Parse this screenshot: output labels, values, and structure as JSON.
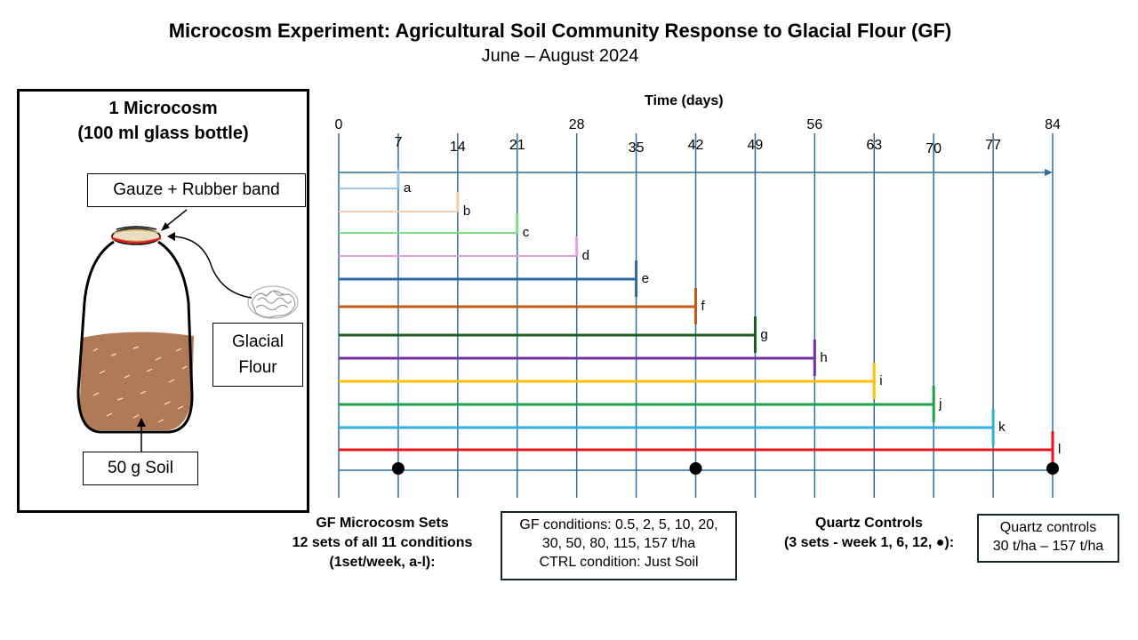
{
  "header": {
    "title": "Microcosm Experiment: Agricultural Soil Community Response to Glacial Flour (GF)",
    "subtitle": "June – August 2024"
  },
  "microcosm": {
    "title_line1": "1 Microcosm",
    "title_line2": "(100 ml glass bottle)",
    "gauze_label": "Gauze + Rubber band",
    "glacial_label_line1": "Glacial",
    "glacial_label_line2": "Flour",
    "soil_label": "50 g Soil",
    "soil_color": "#b07a57"
  },
  "timeline": {
    "axis_title": "Time (days)",
    "ticks": [
      0,
      7,
      14,
      21,
      28,
      35,
      42,
      49,
      56,
      63,
      70,
      77,
      84
    ],
    "sets": [
      {
        "label": "a",
        "end": 7,
        "color": "#9dc3e6"
      },
      {
        "label": "b",
        "end": 14,
        "color": "#f8cbad"
      },
      {
        "label": "c",
        "end": 21,
        "color": "#7fdc84"
      },
      {
        "label": "d",
        "end": 28,
        "color": "#e49ee4"
      },
      {
        "label": "e",
        "end": 35,
        "color": "#2e69a4"
      },
      {
        "label": "f",
        "end": 42,
        "color": "#c55a11"
      },
      {
        "label": "g",
        "end": 49,
        "color": "#1e5b1e"
      },
      {
        "label": "h",
        "end": 56,
        "color": "#7030a0"
      },
      {
        "label": "i",
        "end": 63,
        "color": "#ffc000"
      },
      {
        "label": "j",
        "end": 70,
        "color": "#1aa34a"
      },
      {
        "label": "k",
        "end": 77,
        "color": "#2eaee3"
      },
      {
        "label": "l",
        "end": 84,
        "color": "#e8141b"
      }
    ],
    "quartz_days": [
      7,
      42,
      84
    ]
  },
  "captions": {
    "gf_sets_line1": "GF Microcosm Sets",
    "gf_sets_line2": "12 sets of all 11 conditions",
    "gf_sets_line3": "(1set/week, a-l):",
    "gf_conditions_line1": "GF conditions: 0.5, 2, 5, 10, 20,",
    "gf_conditions_line2": "30, 50, 80, 115, 157 t/ha",
    "gf_conditions_line3": "CTRL condition: Just Soil",
    "quartz_line1": "Quartz Controls",
    "quartz_line2": "(3 sets - week 1, 6, 12, ●):",
    "quartz_box_line1": "Quartz controls",
    "quartz_box_line2": "30 t/ha – 157 t/ha"
  }
}
